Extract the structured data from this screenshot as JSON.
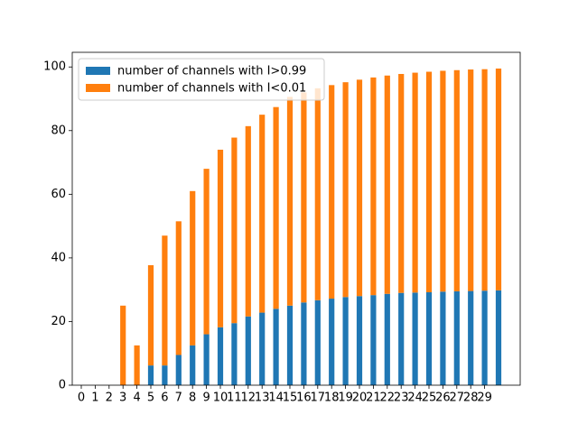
{
  "chart_data": {
    "type": "stacked_bar",
    "categories": [
      "0",
      "1",
      "2",
      "3",
      "4",
      "5",
      "6",
      "7",
      "8",
      "9",
      "10",
      "11",
      "12",
      "13",
      "14",
      "15",
      "16",
      "17",
      "18",
      "19",
      "20",
      "21",
      "22",
      "23",
      "24",
      "25",
      "26",
      "27",
      "28",
      "29",
      null
    ],
    "series": [
      {
        "name": "number of channels with I>0.99",
        "color": "#1f77b4",
        "values": [
          0,
          0,
          0,
          0,
          0,
          6.2,
          6.2,
          9.5,
          12.5,
          16,
          18.2,
          19.5,
          21.6,
          22.8,
          24,
          25,
          26,
          26.7,
          27.2,
          27.7,
          28,
          28.3,
          28.7,
          29,
          29.1,
          29.2,
          29.4,
          29.5,
          29.6,
          29.7,
          29.8
        ]
      },
      {
        "name": "number of channels with I<0.01",
        "color": "#ff7f0e",
        "values": [
          0,
          0,
          0,
          25,
          12.5,
          31.5,
          40.8,
          42,
          48.5,
          52,
          55.8,
          58.3,
          59.8,
          62.2,
          63.4,
          65.6,
          66,
          66.6,
          67.1,
          67.5,
          68,
          68.4,
          68.6,
          68.8,
          69.1,
          69.3,
          69.4,
          69.5,
          69.6,
          69.6,
          69.7
        ]
      }
    ],
    "ylim": [
      0,
      104.6
    ],
    "yticks": [
      0,
      20,
      40,
      60,
      80,
      100
    ],
    "legend": "upper left"
  }
}
